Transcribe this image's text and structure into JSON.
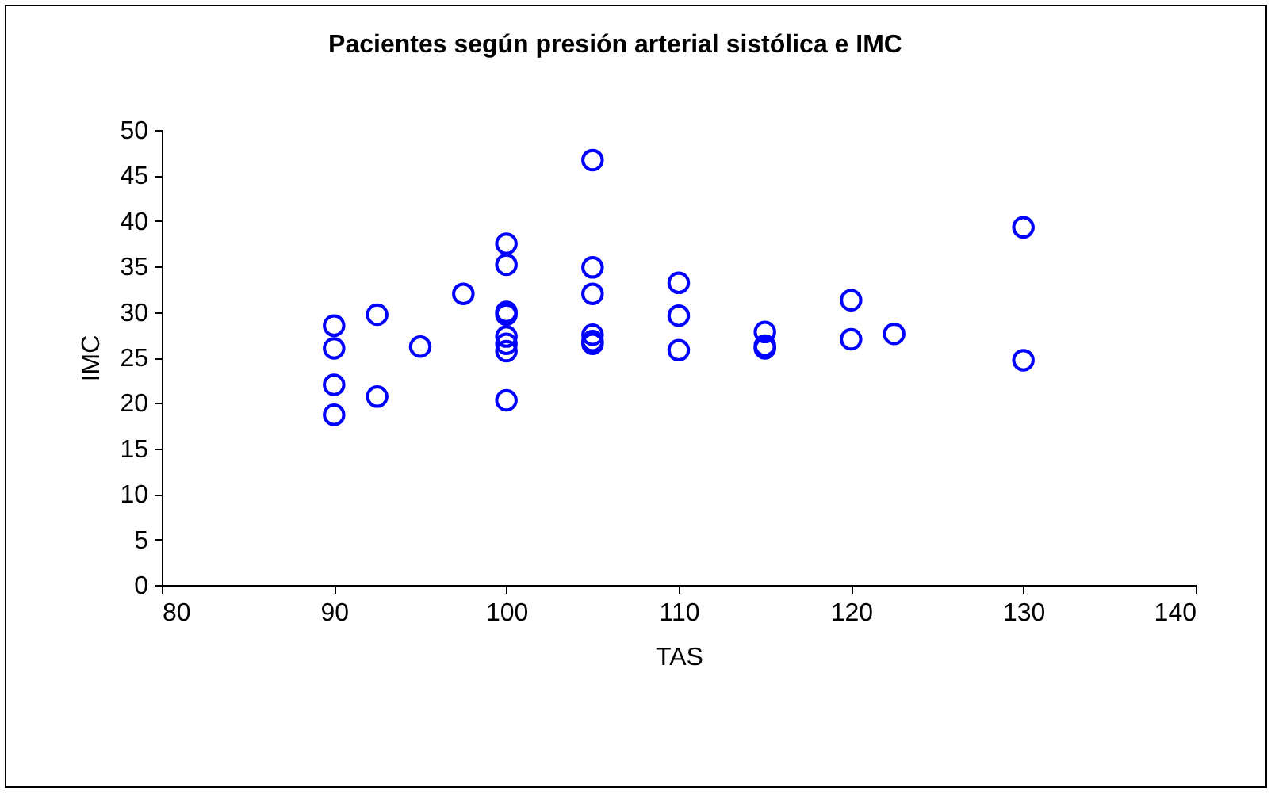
{
  "chart_data": {
    "type": "scatter",
    "title": "Pacientes según presión arterial sistólica e IMC",
    "xlabel": "TAS",
    "ylabel": "IMC",
    "x": [
      90,
      90,
      90,
      90,
      92.5,
      92.5,
      95,
      97.5,
      100,
      100,
      100,
      100,
      100,
      100,
      100,
      100,
      105,
      105,
      105,
      105,
      105,
      105,
      110,
      110,
      110,
      115,
      115,
      115,
      120,
      120,
      122.5,
      130,
      130
    ],
    "series": [
      {
        "color": "#0000ff",
        "values": [
          28.5,
          26,
          22,
          18.7,
          29.7,
          20.7,
          26.2,
          32,
          37.5,
          35.2,
          30,
          29.7,
          27.3,
          26.5,
          25.7,
          20.3,
          46.7,
          34.9,
          32,
          27.5,
          26.8,
          26.5,
          33.2,
          29.6,
          25.8,
          27.8,
          26.3,
          26,
          31.3,
          27,
          27.6,
          39.3,
          24.7
        ]
      }
    ],
    "xlim": [
      80,
      140
    ],
    "xticks": [
      80,
      90,
      100,
      110,
      120,
      130,
      140
    ],
    "ylim": [
      0,
      50
    ],
    "yticks": [
      0,
      5,
      10,
      15,
      20,
      25,
      30,
      35,
      40,
      45,
      50
    ],
    "grid": false,
    "marker": "circle"
  }
}
